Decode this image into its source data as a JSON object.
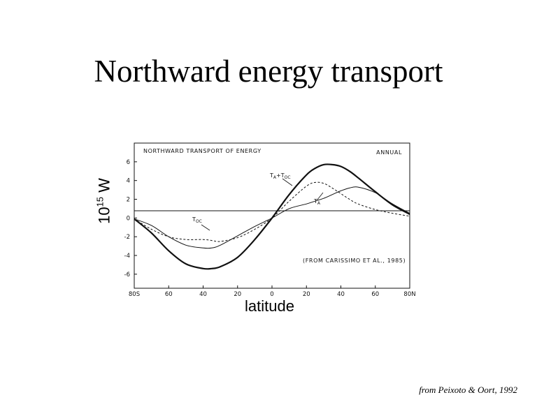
{
  "slide": {
    "title": "Northward energy transport",
    "ylabel_base": "10",
    "ylabel_exp": "15",
    "ylabel_unit": " W",
    "xlabel": "latitude",
    "credit": "from Peixoto & Oort, 1992"
  },
  "chart_data": {
    "type": "line",
    "title": "NORTHWARD TRANSPORT OF ENERGY",
    "subtitle": "ANNUAL",
    "source_note": "(FROM CARISSIMO ET AL., 1985)",
    "xlim": [
      -80,
      80
    ],
    "ylim": [
      -7.5,
      8
    ],
    "x_tick_labels": [
      {
        "x": -80,
        "label": "80S"
      },
      {
        "x": -60,
        "label": "60"
      },
      {
        "x": -40,
        "label": "40"
      },
      {
        "x": -20,
        "label": "20"
      },
      {
        "x": 0,
        "label": "0"
      },
      {
        "x": 20,
        "label": "20"
      },
      {
        "x": 40,
        "label": "40"
      },
      {
        "x": 60,
        "label": "60"
      },
      {
        "x": 80,
        "label": "80N"
      }
    ],
    "y_tick_labels": [
      {
        "y": 6,
        "label": "6"
      },
      {
        "y": 4,
        "label": "4"
      },
      {
        "y": 2,
        "label": "2"
      },
      {
        "y": 0,
        "label": "0"
      },
      {
        "y": -2,
        "label": "-2"
      },
      {
        "y": -4,
        "label": "-4"
      },
      {
        "y": -6,
        "label": "-6"
      }
    ],
    "x": [
      -80,
      -70,
      -60,
      -50,
      -40,
      -35,
      -30,
      -20,
      -10,
      0,
      10,
      20,
      25,
      30,
      35,
      40,
      45,
      50,
      60,
      70,
      80
    ],
    "series": [
      {
        "label": "TA+TOC",
        "style": "solid",
        "width": 2.2,
        "values": [
          -0.1,
          -1.6,
          -3.5,
          -4.9,
          -5.4,
          -5.4,
          -5.2,
          -4.2,
          -2.3,
          0.0,
          2.5,
          4.6,
          5.3,
          5.7,
          5.7,
          5.5,
          5.0,
          4.3,
          2.8,
          1.4,
          0.4
        ]
      },
      {
        "label": "TA",
        "style": "solid",
        "width": 1,
        "values": [
          -0.1,
          -0.8,
          -2.0,
          -2.9,
          -3.2,
          -3.2,
          -2.9,
          -1.9,
          -0.9,
          0.0,
          1.0,
          1.5,
          1.8,
          2.1,
          2.5,
          2.9,
          3.2,
          3.3,
          2.7,
          1.5,
          0.5
        ]
      },
      {
        "label": "TOC",
        "style": "dashed",
        "width": 1,
        "values": [
          -0.1,
          -1.2,
          -2.0,
          -2.3,
          -2.3,
          -2.4,
          -2.5,
          -2.1,
          -1.2,
          0.0,
          1.8,
          3.4,
          3.8,
          3.7,
          3.2,
          2.6,
          2.0,
          1.5,
          0.9,
          0.5,
          0.2
        ]
      }
    ]
  }
}
